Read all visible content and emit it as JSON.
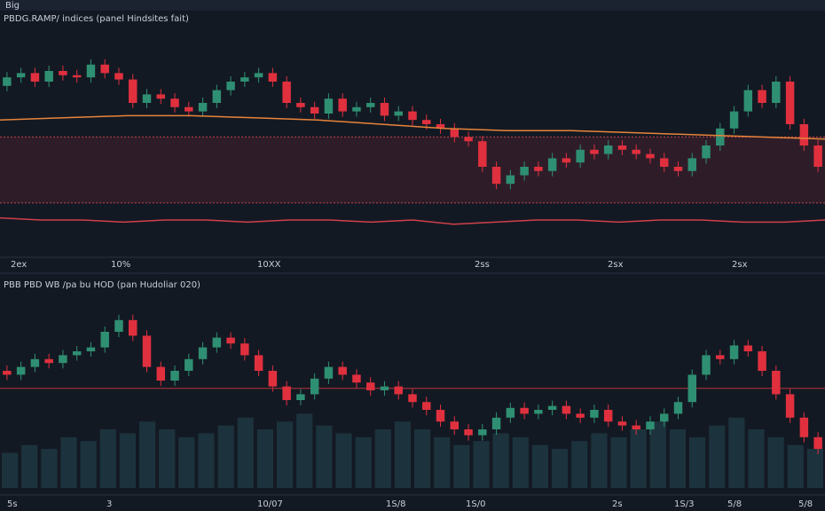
{
  "header": {
    "tag": "Big"
  },
  "panels": [
    {
      "title": "PBDG.RAMP/ indices (panel Hindsites fait)",
      "ylim": [
        0,
        100
      ],
      "xlabels": [
        "2ex",
        "10%",
        "10XX",
        "2ss",
        "2sx",
        "2sx"
      ],
      "closes": [
        68,
        72,
        74,
        70,
        75,
        73,
        72,
        78,
        74,
        71,
        60,
        64,
        62,
        58,
        56,
        60,
        66,
        70,
        72,
        74,
        70,
        60,
        58,
        55,
        62,
        56,
        58,
        60,
        54,
        56,
        52,
        50,
        48,
        44,
        42,
        30,
        22,
        26,
        30,
        28,
        34,
        32,
        38,
        36,
        40,
        38,
        36,
        34,
        30,
        28,
        34,
        40,
        48,
        56,
        66,
        60,
        70,
        50,
        40,
        30
      ],
      "ma": [
        52,
        53,
        54,
        54,
        53,
        52,
        50,
        48,
        47,
        47,
        46,
        45,
        44,
        43
      ],
      "lower": [
        6,
        5,
        5,
        4,
        5,
        5,
        4,
        5,
        5,
        4,
        5,
        3,
        4,
        5,
        5,
        4,
        5,
        5,
        4,
        4,
        5
      ],
      "zone": [
        44,
        13
      ]
    },
    {
      "title": "PBB PBD WB /pa bu HOD (pan Hudoliar 020)",
      "ylim": [
        0,
        100
      ],
      "xlabels": [
        "5s",
        "3",
        "10/07",
        "1S/8",
        "1S/0",
        "2s",
        "1S/3",
        "5/8",
        "5/8"
      ],
      "closes": [
        60,
        58,
        62,
        66,
        64,
        68,
        70,
        72,
        80,
        86,
        78,
        62,
        55,
        60,
        66,
        72,
        77,
        74,
        68,
        60,
        52,
        45,
        48,
        56,
        62,
        58,
        54,
        50,
        52,
        48,
        44,
        40,
        34,
        30,
        27,
        30,
        36,
        41,
        38,
        40,
        42,
        38,
        36,
        40,
        34,
        32,
        30,
        34,
        38,
        44,
        58,
        68,
        66,
        73,
        70,
        60,
        48,
        36,
        26,
        20
      ],
      "hline": 51,
      "volume": [
        18,
        22,
        20,
        26,
        24,
        30,
        28,
        34,
        30,
        26,
        28,
        32,
        36,
        30,
        34,
        38,
        32,
        28,
        26,
        30,
        34,
        30,
        26,
        22,
        24,
        28,
        26,
        22,
        20,
        24,
        28,
        26,
        30,
        34,
        30,
        26,
        32,
        36,
        30,
        26,
        22,
        20
      ]
    }
  ]
}
